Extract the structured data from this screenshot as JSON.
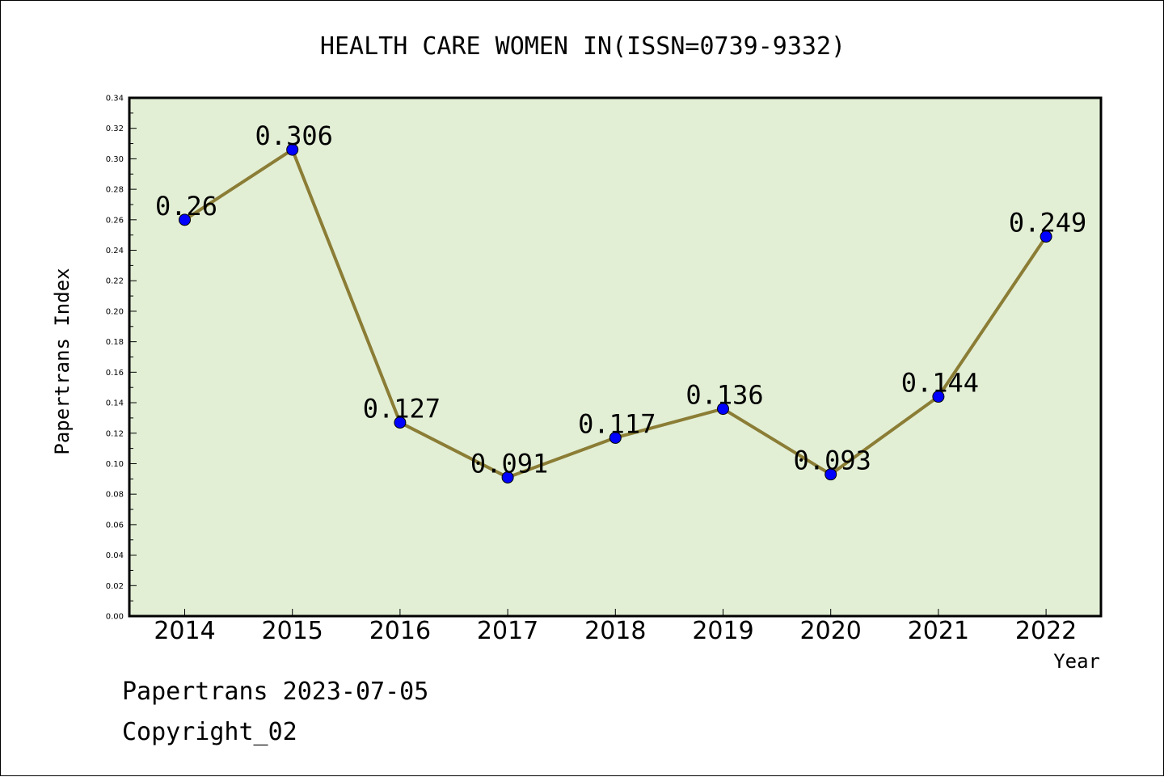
{
  "chart_data": {
    "type": "line",
    "title": "HEALTH CARE WOMEN IN(ISSN=0739-9332)",
    "xlabel": "Year",
    "ylabel": "Papertrans Index",
    "categories": [
      "2014",
      "2015",
      "2016",
      "2017",
      "2018",
      "2019",
      "2020",
      "2021",
      "2022"
    ],
    "series": [
      {
        "values": [
          0.26,
          0.306,
          0.127,
          0.091,
          0.117,
          0.136,
          0.093,
          0.144,
          0.249
        ],
        "data_labels": [
          "0.26",
          "0.306",
          "0.127",
          "0.091",
          "0.117",
          "0.136",
          "0.093",
          "0.144",
          "0.249"
        ]
      }
    ],
    "ylim": [
      0,
      0.34
    ],
    "yticks": [
      "0.00",
      "0.02",
      "0.04",
      "0.06",
      "0.08",
      "0.10",
      "0.12",
      "0.14",
      "0.16",
      "0.18",
      "0.20",
      "0.22",
      "0.24",
      "0.26",
      "0.28",
      "0.30",
      "0.32",
      "0.34"
    ],
    "grid": false,
    "colors": {
      "plot_background": "#e2efd5",
      "line": "#8b7d35",
      "marker": "#0000ff"
    }
  },
  "footer": {
    "date_line": "Papertrans 2023-07-05",
    "copyright": "Copyright_02"
  }
}
